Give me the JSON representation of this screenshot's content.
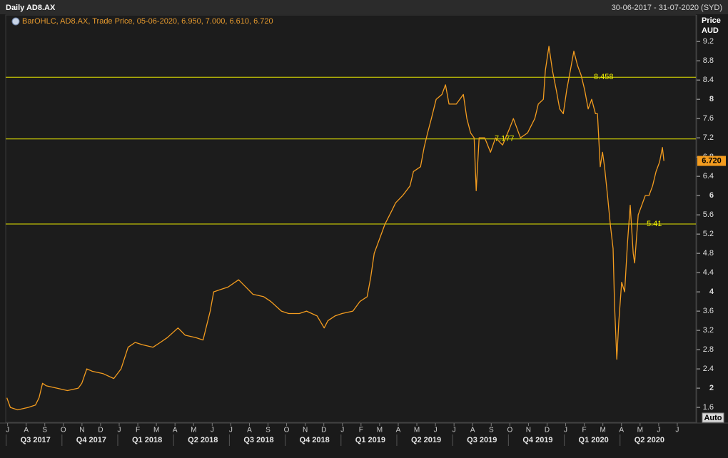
{
  "chart_data": {
    "type": "line",
    "title": "Daily AD8.AX",
    "date_range": "30-06-2017 - 31-07-2020 (SYD)",
    "legend": "BarOHLC, AD8.AX, Trade Price, 05-06-2020, 6.950, 7.000, 6.610, 6.720",
    "y_axis_label": [
      "Price",
      "AUD"
    ],
    "button": "Auto",
    "color": "#f39c1f",
    "x": [
      -0.04,
      0.15,
      0.54,
      1.11,
      1.5,
      1.69,
      1.88,
      2.07,
      2.65,
      3.22,
      3.8,
      3.99,
      4.26,
      4.56,
      5.14,
      5.71,
      6.1,
      6.48,
      6.86,
      7.25,
      7.82,
      8.21,
      8.59,
      9.16,
      9.55,
      10.12,
      10.51,
      10.7,
      10.89,
      11.08,
      11.46,
      11.85,
      12.42,
      12.81,
      13.19,
      13.77,
      14.15,
      14.72,
      15.11,
      15.68,
      16.07,
      16.64,
      17.02,
      17.22,
      17.6,
      17.98,
      18.56,
      18.94,
      19.33,
      19.52,
      19.71,
      19.9,
      20.28,
      20.67,
      20.86,
      21.24,
      21.63,
      21.82,
      22.2,
      22.39,
      22.58,
      22.78,
      23.04,
      23.35,
      23.54,
      23.73,
      24.12,
      24.31,
      24.5,
      24.69,
      24.89,
      25.08,
      25.19,
      25.35,
      25.65,
      25.96,
      26.23,
      26.61,
      26.99,
      27.19,
      27.57,
      27.95,
      28.34,
      28.53,
      28.8,
      28.91,
      29.1,
      29.29,
      29.49,
      29.68,
      29.87,
      30.06,
      30.25,
      30.44,
      30.64,
      30.83,
      31.02,
      31.21,
      31.4,
      31.6,
      31.71,
      31.86,
      31.98,
      32.09,
      32.25,
      32.4,
      32.55,
      32.63,
      32.75,
      32.86,
      33.01,
      33.17,
      33.32,
      33.47,
      33.63,
      33.71,
      33.9,
      34.09,
      34.28,
      34.48,
      34.67,
      34.86,
      35.05,
      35.2,
      35.28
    ],
    "values": [
      1.8,
      1.6,
      1.55,
      1.6,
      1.65,
      1.8,
      2.1,
      2.05,
      2.0,
      1.95,
      2.0,
      2.1,
      2.4,
      2.35,
      2.3,
      2.2,
      2.4,
      2.85,
      2.95,
      2.9,
      2.85,
      2.95,
      3.05,
      3.25,
      3.1,
      3.05,
      3.0,
      3.3,
      3.6,
      4.0,
      4.05,
      4.1,
      4.25,
      4.1,
      3.95,
      3.9,
      3.8,
      3.6,
      3.55,
      3.55,
      3.6,
      3.5,
      3.25,
      3.4,
      3.5,
      3.55,
      3.6,
      3.8,
      3.9,
      4.3,
      4.8,
      5.0,
      5.4,
      5.7,
      5.85,
      6.0,
      6.2,
      6.5,
      6.6,
      7.0,
      7.3,
      7.6,
      8.0,
      8.1,
      8.3,
      7.9,
      7.9,
      8.0,
      8.1,
      7.6,
      7.3,
      7.2,
      6.1,
      7.2,
      7.2,
      6.9,
      7.2,
      7.05,
      7.4,
      7.6,
      7.2,
      7.3,
      7.6,
      7.9,
      8.0,
      8.6,
      9.1,
      8.6,
      8.2,
      7.8,
      7.7,
      8.2,
      8.6,
      9.0,
      8.7,
      8.5,
      8.2,
      7.8,
      8.0,
      7.7,
      7.7,
      6.6,
      6.9,
      6.6,
      6.0,
      5.4,
      4.9,
      3.7,
      2.6,
      3.4,
      4.2,
      4.0,
      5.0,
      5.8,
      4.8,
      4.6,
      5.6,
      5.8,
      6.0,
      6.0,
      6.2,
      6.5,
      6.7,
      7.0,
      6.72
    ],
    "xlim": [
      -0.1,
      37
    ],
    "xticks": [
      {
        "value": 0,
        "label": "J"
      },
      {
        "value": 1,
        "label": "A"
      },
      {
        "value": 2,
        "label": "S"
      },
      {
        "value": 3,
        "label": "O"
      },
      {
        "value": 4,
        "label": "N"
      },
      {
        "value": 5,
        "label": "D"
      },
      {
        "value": 6,
        "label": "J"
      },
      {
        "value": 7,
        "label": "F"
      },
      {
        "value": 8,
        "label": "M"
      },
      {
        "value": 9,
        "label": "A"
      },
      {
        "value": 10,
        "label": "M"
      },
      {
        "value": 11,
        "label": "J"
      },
      {
        "value": 12,
        "label": "J"
      },
      {
        "value": 13,
        "label": "A"
      },
      {
        "value": 14,
        "label": "S"
      },
      {
        "value": 15,
        "label": "O"
      },
      {
        "value": 16,
        "label": "N"
      },
      {
        "value": 17,
        "label": "D"
      },
      {
        "value": 18,
        "label": "J"
      },
      {
        "value": 19,
        "label": "F"
      },
      {
        "value": 20,
        "label": "M"
      },
      {
        "value": 21,
        "label": "A"
      },
      {
        "value": 22,
        "label": "M"
      },
      {
        "value": 23,
        "label": "J"
      },
      {
        "value": 24,
        "label": "J"
      },
      {
        "value": 25,
        "label": "A"
      },
      {
        "value": 26,
        "label": "S"
      },
      {
        "value": 27,
        "label": "O"
      },
      {
        "value": 28,
        "label": "N"
      },
      {
        "value": 29,
        "label": "D"
      },
      {
        "value": 30,
        "label": "J"
      },
      {
        "value": 31,
        "label": "F"
      },
      {
        "value": 32,
        "label": "M"
      },
      {
        "value": 33,
        "label": "A"
      },
      {
        "value": 34,
        "label": "M"
      },
      {
        "value": 35,
        "label": "J"
      },
      {
        "value": 36,
        "label": "J"
      }
    ],
    "quarters": [
      {
        "value": 0,
        "label": "Q3 2017"
      },
      {
        "value": 3,
        "label": "Q4 2017"
      },
      {
        "value": 6,
        "label": "Q1 2018"
      },
      {
        "value": 9,
        "label": "Q2 2018"
      },
      {
        "value": 12,
        "label": "Q3 2018"
      },
      {
        "value": 15,
        "label": "Q4 2018"
      },
      {
        "value": 18,
        "label": "Q1 2019"
      },
      {
        "value": 21,
        "label": "Q2 2019"
      },
      {
        "value": 24,
        "label": "Q3 2019"
      },
      {
        "value": 27,
        "label": "Q4 2019"
      },
      {
        "value": 30,
        "label": "Q1 2020"
      },
      {
        "value": 33,
        "label": "Q2 2020"
      }
    ],
    "ylim": [
      1.29,
      9.44
    ],
    "yticks": [
      1.6,
      2,
      2.4,
      2.8,
      3.2,
      3.6,
      4,
      4.4,
      4.8,
      5.2,
      5.6,
      6,
      6.4,
      6.8,
      7.2,
      7.6,
      8,
      8.4,
      8.8,
      9.2
    ],
    "hlines": [
      8.458,
      7.177,
      5.41
    ],
    "hline_color": "#e6e600",
    "last_price": {
      "value": 6.72,
      "label": "6.720"
    }
  }
}
